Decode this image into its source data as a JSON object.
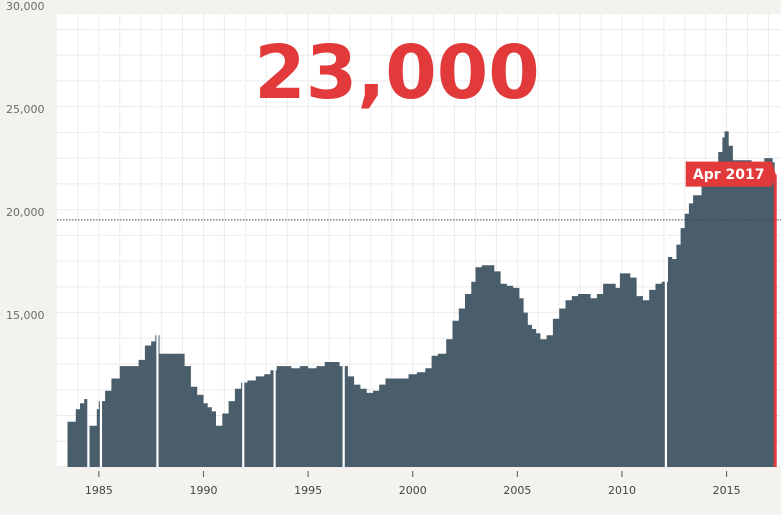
{
  "headline": "23,000",
  "colors": {
    "bars": "#4a5d6b",
    "accent": "#e23a3a",
    "background": "#f4f2ee",
    "plot_background": "#ffffff",
    "grid": "#ebebeb"
  },
  "chart_data": {
    "type": "area",
    "title": "",
    "xlabel": "",
    "ylabel": "",
    "xlim": [
      1983,
      2017.6
    ],
    "ylim": [
      8000,
      30000
    ],
    "y_ticks": [
      {
        "value": 15000,
        "label": "15,000"
      },
      {
        "value": 20000,
        "label": "20,000"
      },
      {
        "value": 25000,
        "label": "25,000"
      },
      {
        "value": 30000,
        "label": "30,000"
      }
    ],
    "x_ticks": [
      {
        "value": 1985,
        "label": "1985"
      },
      {
        "value": 1990,
        "label": "1990"
      },
      {
        "value": 1995,
        "label": "1995"
      },
      {
        "value": 2000,
        "label": "2000"
      },
      {
        "value": 2005,
        "label": "2005"
      },
      {
        "value": 2010,
        "label": "2010"
      },
      {
        "value": 2015,
        "label": "2015"
      }
    ],
    "reference_line": {
      "value": 20000
    },
    "gaps": [
      1984.5,
      1985.1,
      1987.8,
      1991.9,
      1993.4,
      1996.7,
      2012.1
    ],
    "series": [
      {
        "x": [
          1983.5,
          1983.7,
          1983.9,
          1984.1,
          1984.3,
          1984.5,
          1984.9,
          1985.0,
          1985.3,
          1985.6,
          1986.0,
          1986.5,
          1986.9,
          1987.2,
          1987.5,
          1987.7,
          1987.9,
          1988.5,
          1988.8,
          1989.1,
          1989.4,
          1989.7,
          1990.0,
          1990.2,
          1990.4,
          1990.6,
          1990.9,
          1991.2,
          1991.5,
          1991.8,
          1992.1,
          1992.5,
          1992.9,
          1993.2,
          1993.5,
          1993.8,
          1994.2,
          1994.6,
          1995.0,
          1995.4,
          1995.8,
          1996.2,
          1996.5,
          1996.9,
          1997.2,
          1997.5,
          1997.8,
          1998.1,
          1998.4,
          1998.7,
          1999.0,
          1999.4,
          1999.8,
          2000.2,
          2000.6,
          2000.9,
          2001.2,
          2001.6,
          2001.9,
          2002.2,
          2002.5,
          2002.8,
          2003.0,
          2003.3,
          2003.6,
          2003.9,
          2004.2,
          2004.5,
          2004.8,
          2005.1,
          2005.3,
          2005.5,
          2005.7,
          2005.9,
          2006.1,
          2006.4,
          2006.7,
          2007.0,
          2007.3,
          2007.6,
          2007.9,
          2008.2,
          2008.5,
          2008.8,
          2009.1,
          2009.4,
          2009.7,
          2009.9,
          2010.1,
          2010.4,
          2010.7,
          2011.0,
          2011.3,
          2011.6,
          2011.9,
          2012.2,
          2012.4,
          2012.6,
          2012.8,
          2013.0,
          2013.2,
          2013.4,
          2013.6,
          2013.8,
          2014.0,
          2014.2,
          2014.4,
          2014.6,
          2014.8,
          2014.9,
          2015.1,
          2015.3,
          2015.5,
          2015.7,
          2015.9,
          2016.2,
          2016.5,
          2016.8,
          2017.0,
          2017.2,
          2017.3
        ],
        "values": [
          10200,
          10200,
          10800,
          11100,
          11300,
          10000,
          10800,
          11200,
          11700,
          12300,
          12900,
          12900,
          13200,
          13900,
          14100,
          14400,
          13500,
          13500,
          13500,
          12900,
          11900,
          11500,
          11100,
          10900,
          10700,
          10000,
          10600,
          11200,
          11800,
          12100,
          12200,
          12400,
          12500,
          12700,
          12900,
          12900,
          12800,
          12900,
          12800,
          12900,
          13100,
          13100,
          12900,
          12400,
          12000,
          11800,
          11600,
          11700,
          12000,
          12300,
          12300,
          12300,
          12500,
          12600,
          12800,
          13400,
          13500,
          14200,
          15100,
          15700,
          16400,
          17000,
          17700,
          17800,
          17800,
          17500,
          16900,
          16800,
          16700,
          16200,
          15500,
          14900,
          14700,
          14500,
          14200,
          14400,
          15200,
          15700,
          16100,
          16300,
          16400,
          16400,
          16200,
          16400,
          16900,
          16900,
          16700,
          17400,
          17400,
          17200,
          16300,
          16100,
          16600,
          16900,
          17000,
          18200,
          18100,
          18800,
          19600,
          20300,
          20800,
          21200,
          21200,
          21700,
          21900,
          22300,
          22700,
          23300,
          24000,
          24300,
          23600,
          22900,
          22900,
          22900,
          22900,
          22500,
          22700,
          23000,
          23000,
          22800,
          22200
        ]
      }
    ],
    "annotation": {
      "label": "Apr 2017",
      "x": 2017.3,
      "y": 22200
    }
  }
}
